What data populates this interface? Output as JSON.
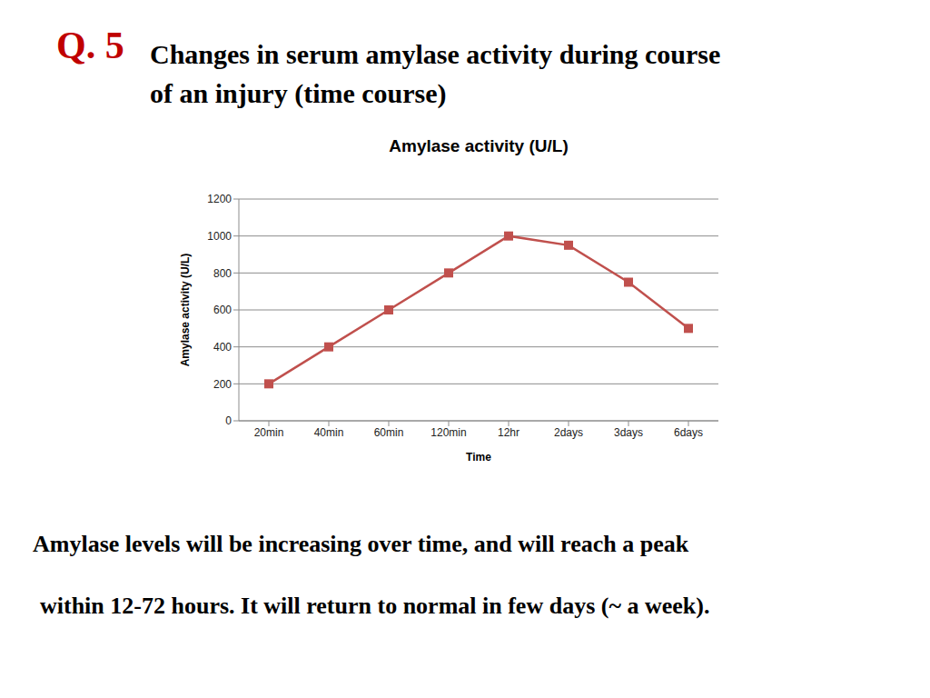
{
  "slide": {
    "number": "Q. 5",
    "heading": [
      "Changes in serum amylase activity during course",
      "of an injury (time course)"
    ],
    "notes": [
      "Amylase levels will be increasing over time, and will reach a peak",
      "within 12-72 hours. It will return to normal in few days (~ a week)."
    ]
  },
  "chart_data": {
    "type": "line",
    "title": "Amylase activity (U/L)",
    "x_label": "Time",
    "y_label": "Amylase activity (U/L)",
    "categories": [
      "20min",
      "40min",
      "60min",
      "120min",
      "12hr",
      "2days",
      "3days",
      "6days"
    ],
    "values": [
      200,
      400,
      600,
      800,
      1000,
      950,
      750,
      500
    ],
    "color": "#c0504d",
    "marker": "square",
    "ylim": [
      0,
      1200
    ],
    "yticks": [
      0,
      200,
      400,
      600,
      800,
      1000,
      1200
    ],
    "grid": true
  }
}
